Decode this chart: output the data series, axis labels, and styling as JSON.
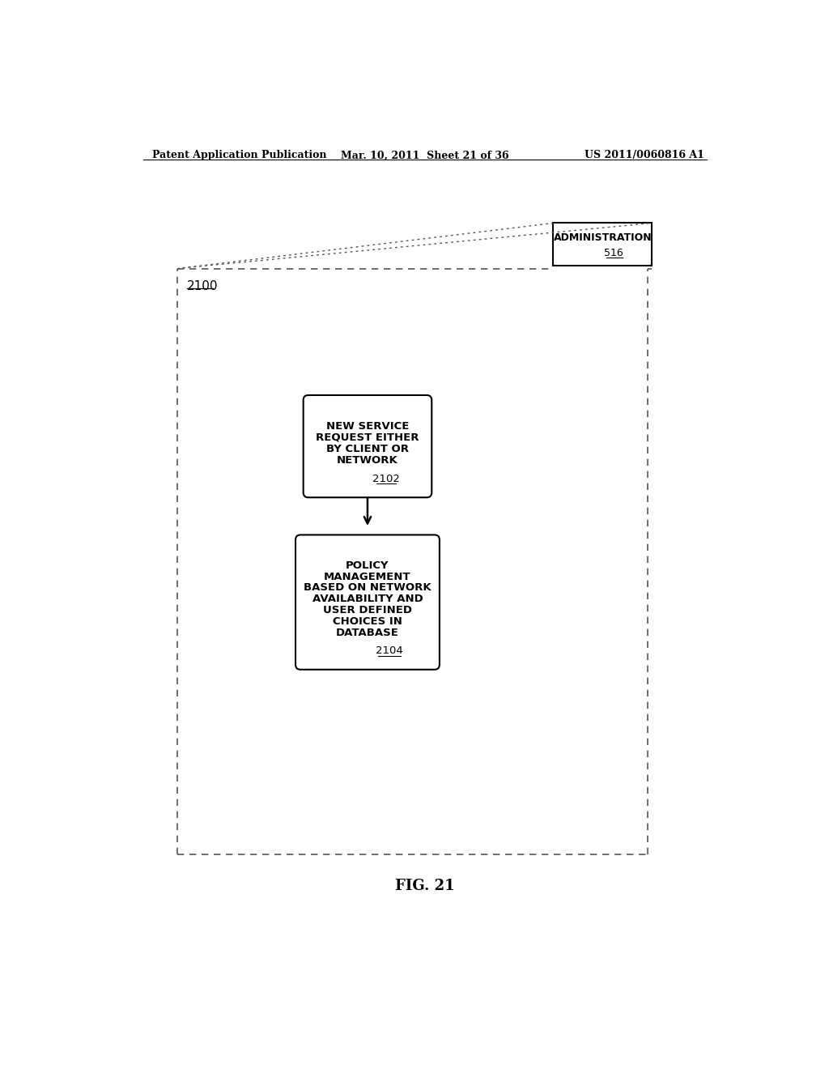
{
  "header_left": "Patent Application Publication",
  "header_mid": "Mar. 10, 2011  Sheet 21 of 36",
  "header_right": "US 2011/0060816 A1",
  "fig_label": "FIG. 21",
  "admin_box_text": "ADMINISTRATION",
  "admin_box_number": "516",
  "outer_box_label": "2100",
  "box1_lines": [
    "NEW SERVICE",
    "REQUEST EITHER",
    "BY CLIENT OR",
    "NETWORK"
  ],
  "box1_number": "2102",
  "box2_lines": [
    "POLICY",
    "MANAGEMENT",
    "BASED ON NETWORK",
    "AVAILABILITY AND",
    "USER DEFINED",
    "CHOICES IN",
    "DATABASE"
  ],
  "box2_number": "2104",
  "bg_color": "#ffffff",
  "text_color": "#000000",
  "box_line_color": "#000000",
  "dashed_line_color": "#555555"
}
